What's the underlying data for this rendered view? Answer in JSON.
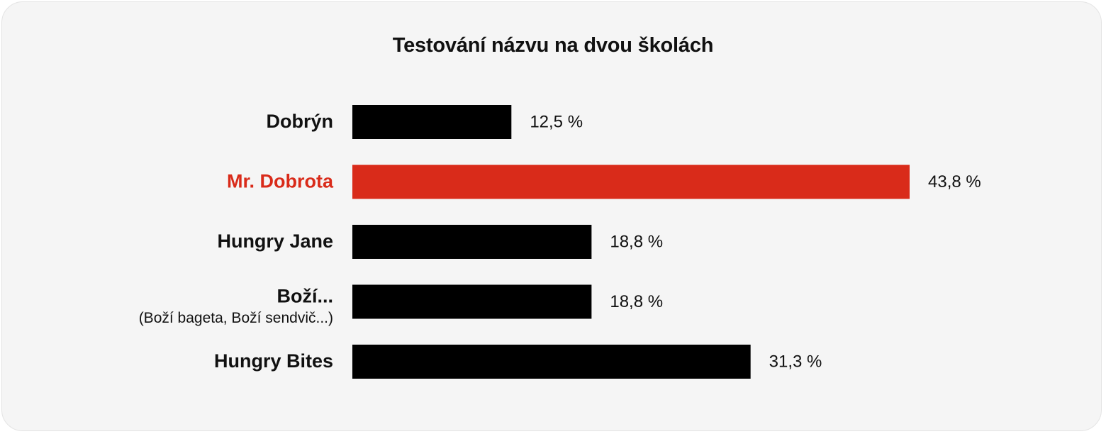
{
  "chart_data": {
    "type": "bar",
    "orientation": "horizontal",
    "title": "Testování názvu na dvou školách",
    "categories": [
      "Dobrýn",
      "Mr. Dobrota",
      "Hungry Jane",
      "Boží...",
      "Hungry Bites"
    ],
    "category_sublabels": [
      "",
      "",
      "",
      "(Boží bageta, Boží sendvič...)",
      ""
    ],
    "values": [
      12.5,
      43.8,
      18.8,
      18.8,
      31.3
    ],
    "value_labels": [
      "12,5 %",
      "43,8 %",
      "18,8 %",
      "18,8 %",
      "31,3 %"
    ],
    "highlight_index": 1,
    "xlim": [
      0,
      43.8
    ],
    "grid": false,
    "colors": {
      "bar": "#000000",
      "highlight": "#d92b1a",
      "text": "#111111",
      "background": "#f5f5f5"
    }
  }
}
